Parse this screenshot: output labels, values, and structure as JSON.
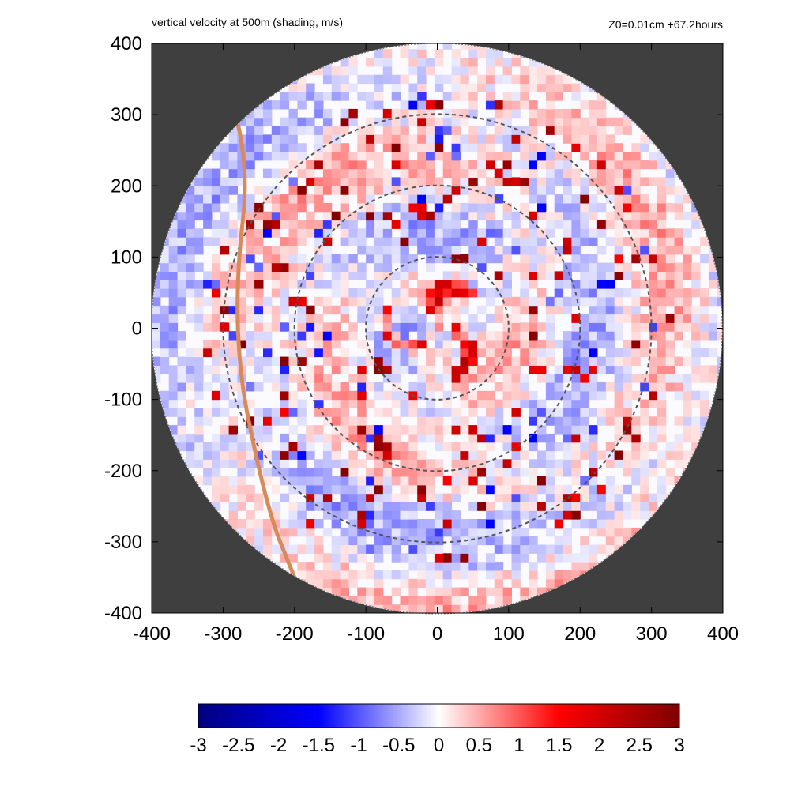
{
  "chart_data": {
    "type": "heatmap",
    "title": "vertical velocity at 500m (shading, m/s)",
    "subtitle": "Z0=0.01cm  +67.2hours",
    "xlim": [
      -400,
      400
    ],
    "ylim": [
      -400,
      400
    ],
    "x_ticks": [
      "-400",
      "-300",
      "-200",
      "-100",
      "0",
      "100",
      "200",
      "300",
      "400"
    ],
    "y_ticks": [
      "400",
      "300",
      "200",
      "100",
      "0",
      "-100",
      "-200",
      "-300",
      "-400"
    ],
    "domain_radius": 400,
    "reference_circle_radii": [
      100,
      200,
      300
    ],
    "track_line": [
      [
        -340,
        420
      ],
      [
        -255,
        300
      ],
      [
        -290,
        0
      ],
      [
        -240,
        -250
      ],
      [
        -200,
        -350
      ]
    ],
    "colorbar": {
      "min": -3,
      "max": 3,
      "tick_labels": [
        "-3",
        "-2.5",
        "-2",
        "-1.5",
        "-1",
        "-0.5",
        "0",
        "0.5",
        "1",
        "1.5",
        "2",
        "2.5",
        "3"
      ]
    },
    "colors": {
      "background": "#3f3f3f",
      "track": "#d98a5a",
      "circle": "#555555",
      "scale": [
        "#00007f",
        "#0000ff",
        "#ffffff",
        "#ff0000",
        "#7f0000"
      ]
    }
  }
}
